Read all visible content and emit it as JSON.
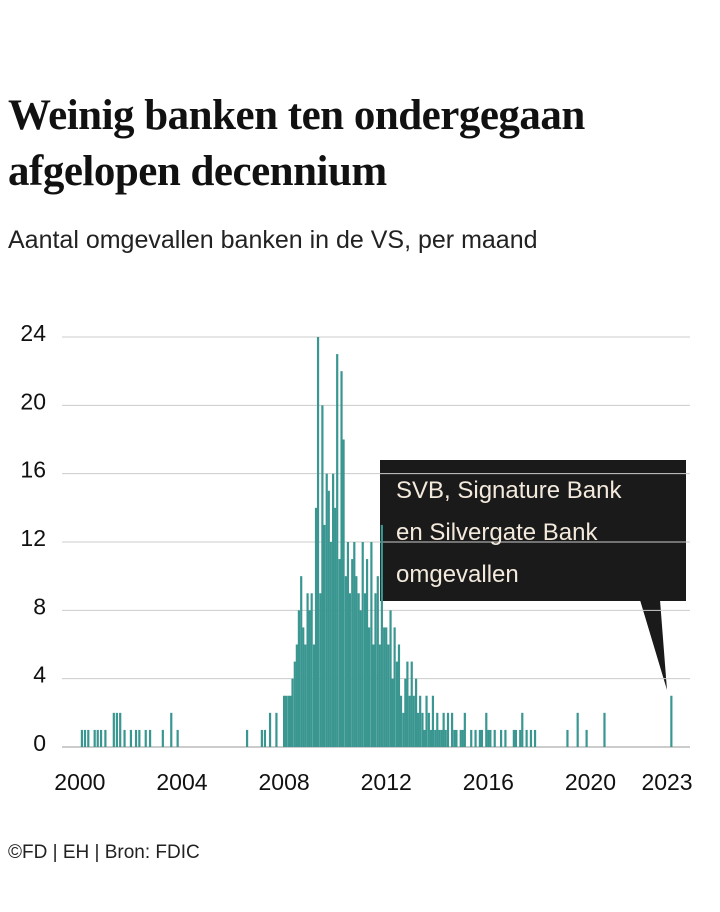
{
  "chart_data": {
    "type": "bar",
    "title": "Weinig banken ten ondergegaan afgelopen decennium",
    "subtitle": "Aantal omgevallen banken in de VS, per maand",
    "source": "©FD | EH | Bron: FDIC",
    "annotation": [
      "SVB, Signature Bank",
      "en Silvergate Bank",
      "omgevallen"
    ],
    "color": "#3a9690",
    "x": [
      2000.08,
      2000.2,
      2000.33,
      2000.58,
      2000.7,
      2000.83,
      2001.0,
      2001.33,
      2001.45,
      2001.58,
      2001.75,
      2002.0,
      2002.2,
      2002.33,
      2002.58,
      2002.75,
      2003.25,
      2003.58,
      2003.83,
      2006.55,
      2007.13,
      2007.25,
      2007.45,
      2007.7,
      2008.0,
      2008.08,
      2008.17,
      2008.25,
      2008.33,
      2008.42,
      2008.5,
      2008.58,
      2008.67,
      2008.75,
      2008.83,
      2008.92,
      2009.0,
      2009.08,
      2009.17,
      2009.25,
      2009.33,
      2009.42,
      2009.5,
      2009.58,
      2009.67,
      2009.75,
      2009.83,
      2009.92,
      2010.0,
      2010.08,
      2010.17,
      2010.25,
      2010.33,
      2010.42,
      2010.5,
      2010.58,
      2010.67,
      2010.75,
      2010.83,
      2010.92,
      2011.0,
      2011.08,
      2011.17,
      2011.25,
      2011.33,
      2011.42,
      2011.5,
      2011.58,
      2011.67,
      2011.75,
      2011.83,
      2011.92,
      2012.0,
      2012.08,
      2012.17,
      2012.25,
      2012.33,
      2012.42,
      2012.5,
      2012.58,
      2012.67,
      2012.75,
      2012.83,
      2012.92,
      2013.0,
      2013.08,
      2013.17,
      2013.25,
      2013.33,
      2013.42,
      2013.5,
      2013.58,
      2013.67,
      2013.75,
      2013.83,
      2013.92,
      2014.0,
      2014.08,
      2014.17,
      2014.25,
      2014.33,
      2014.42,
      2014.5,
      2014.58,
      2014.67,
      2014.75,
      2014.83,
      2014.92,
      2015.0,
      2015.08,
      2015.17,
      2015.25,
      2015.33,
      2015.42,
      2015.5,
      2015.58,
      2015.67,
      2015.75,
      2015.83,
      2015.92,
      2016.0,
      2016.08,
      2016.17,
      2016.25,
      2016.33,
      2016.42,
      2016.5,
      2016.58,
      2016.67,
      2016.75,
      2016.83,
      2016.92,
      2017.0,
      2017.08,
      2017.17,
      2017.25,
      2017.33,
      2017.42,
      2017.5,
      2017.58,
      2017.67,
      2017.75,
      2017.83,
      2017.92,
      2019.1,
      2019.5,
      2019.85,
      2020.55,
      2023.17
    ],
    "values": [
      1,
      1,
      1,
      1,
      1,
      1,
      1,
      2,
      2,
      2,
      1,
      1,
      1,
      1,
      1,
      1,
      1,
      2,
      1,
      1,
      1,
      1,
      2,
      2,
      3,
      3,
      3,
      3,
      4,
      5,
      6,
      8,
      10,
      7,
      6,
      9,
      8,
      9,
      6,
      14,
      24,
      9,
      20,
      13,
      16,
      15,
      12,
      16,
      14,
      23,
      11,
      22,
      18,
      10,
      12,
      9,
      11,
      12,
      10,
      9,
      8,
      12,
      9,
      11,
      7,
      12,
      6,
      9,
      10,
      6,
      13,
      7,
      7,
      6,
      8,
      4,
      7,
      5,
      6,
      3,
      2,
      4,
      5,
      3,
      5,
      3,
      4,
      2,
      3,
      2,
      1,
      3,
      2,
      1,
      3,
      1,
      2,
      1,
      1,
      2,
      1,
      2,
      0,
      2,
      1,
      1,
      0,
      1,
      1,
      2,
      0,
      0,
      1,
      0,
      1,
      0,
      1,
      1,
      0,
      2,
      1,
      1,
      0,
      1,
      0,
      0,
      1,
      0,
      1,
      0,
      0,
      0,
      1,
      1,
      0,
      1,
      2,
      0,
      1,
      0,
      1,
      0,
      1,
      0,
      1,
      2,
      1,
      2,
      3
    ],
    "xlim": [
      1999.3,
      2023.9
    ],
    "xticks": [
      2000,
      2004,
      2008,
      2012,
      2016,
      2020,
      2023
    ],
    "ylim": [
      0,
      24
    ],
    "yticks": [
      0,
      4,
      8,
      12,
      16,
      20,
      24
    ],
    "grid": true
  }
}
